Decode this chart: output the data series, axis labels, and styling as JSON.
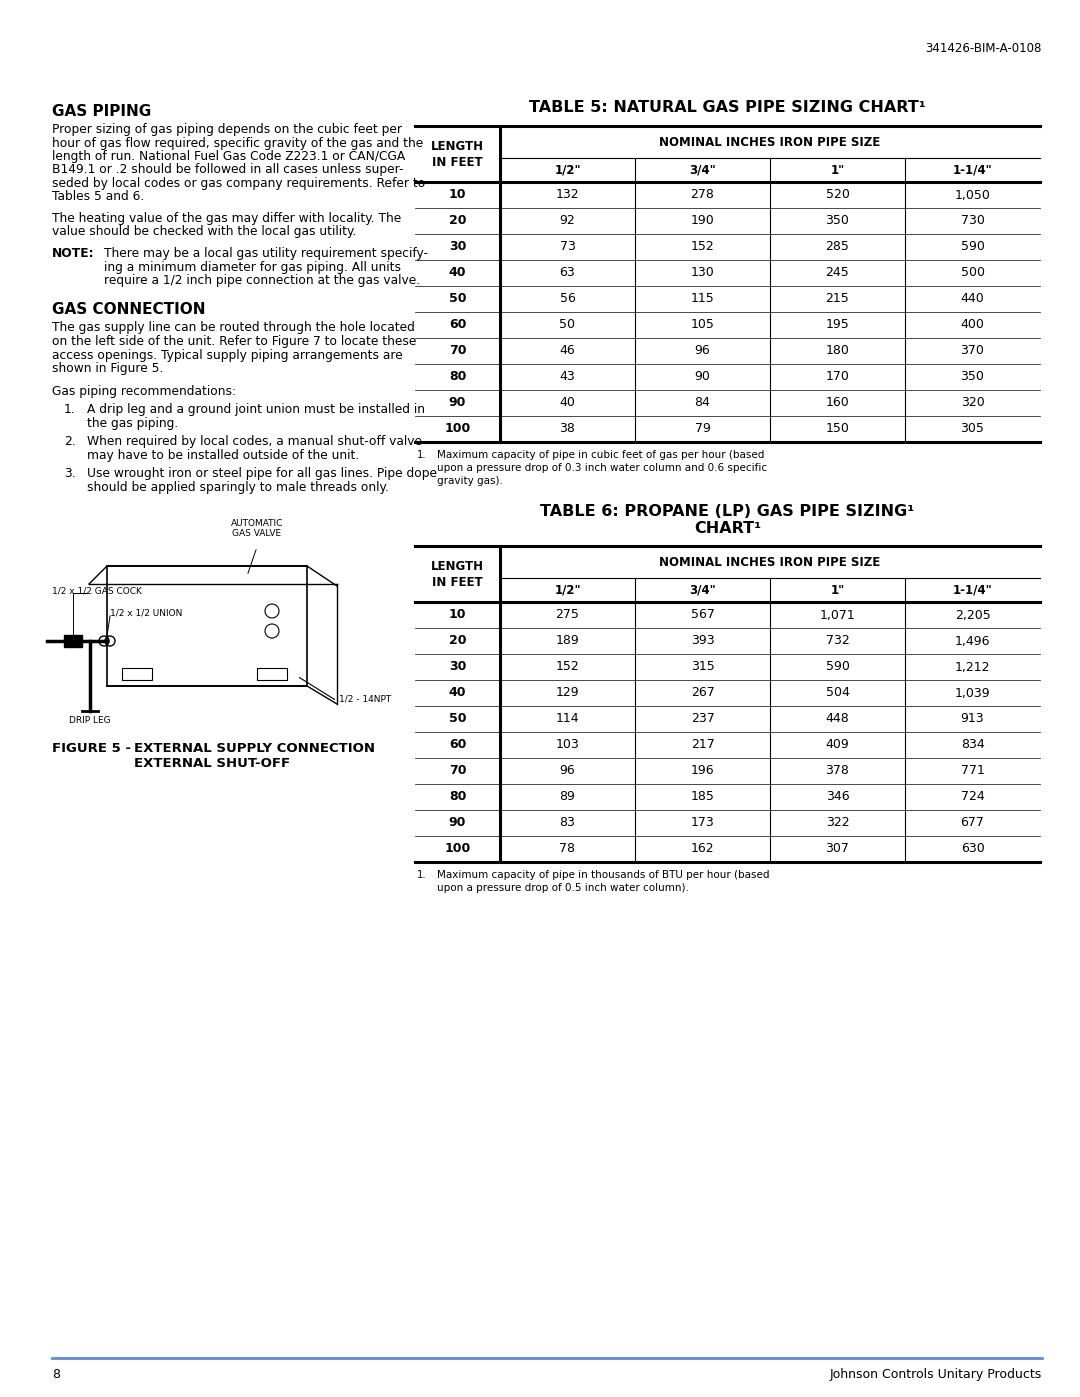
{
  "page_number": "8",
  "doc_number": "341426-BIM-A-0108",
  "footer_text": "Johnson Controls Unitary Products",
  "gas_piping_title": "GAS PIPING",
  "gas_piping_lines": [
    "Proper sizing of gas piping depends on the cubic feet per",
    "hour of gas flow required, specific gravity of the gas and the",
    "length of run. National Fuel Gas Code Z223.1 or CAN/CGA",
    "B149.1 or .2 should be followed in all cases unless super-",
    "seded by local codes or gas company requirements. Refer to",
    "Tables 5 and 6."
  ],
  "gas_piping_para2_lines": [
    "The heating value of the gas may differ with locality. The",
    "value should be checked with the local gas utility."
  ],
  "note_label": "NOTE:",
  "note_text_lines": [
    "There may be a local gas utility requirement specify-",
    "ing a minimum diameter for gas piping. All units",
    "require a 1/2 inch pipe connection at the gas valve."
  ],
  "gas_connection_title": "GAS CONNECTION",
  "gas_connection_lines": [
    "The gas supply line can be routed through the hole located",
    "on the left side of the unit. Refer to Figure 7 to locate these",
    "access openings. Typical supply piping arrangements are",
    "shown in Figure 5."
  ],
  "gas_piping_recs_label": "Gas piping recommendations:",
  "gas_piping_recs": [
    [
      "A drip leg and a ground joint union must be installed in",
      "the gas piping."
    ],
    [
      "When required by local codes, a manual shut-off valve",
      "may have to be installed outside of the unit."
    ],
    [
      "Use wrought iron or steel pipe for all gas lines. Pipe dope",
      "should be applied sparingly to male threads only."
    ]
  ],
  "figure_label_auto_gas": "AUTOMATIC\nGAS VALVE",
  "figure_label_union": "1/2 x 1/2 UNION",
  "figure_label_gas_cock": "1/2 x 1/2 GAS COCK",
  "figure_label_npt": "1/2 - 14NPT",
  "figure_label_drip": "DRIP LEG",
  "figure_caption_num": "FIGURE 5 -",
  "figure_caption_line1": "EXTERNAL SUPPLY CONNECTION",
  "figure_caption_line2": "EXTERNAL SHUT-OFF",
  "table5_title": "TABLE 5: NATURAL GAS PIPE SIZING CHART",
  "table5_sup": "1",
  "table5_col0_header": "LENGTH\nIN FEET",
  "table5_header2": "NOMINAL INCHES IRON PIPE SIZE",
  "table5_subheaders": [
    "1/2\"",
    "3/4\"",
    "1\"",
    "1-1/4\""
  ],
  "table5_rows": [
    [
      "10",
      "132",
      "278",
      "520",
      "1,050"
    ],
    [
      "20",
      "92",
      "190",
      "350",
      "730"
    ],
    [
      "30",
      "73",
      "152",
      "285",
      "590"
    ],
    [
      "40",
      "63",
      "130",
      "245",
      "500"
    ],
    [
      "50",
      "56",
      "115",
      "215",
      "440"
    ],
    [
      "60",
      "50",
      "105",
      "195",
      "400"
    ],
    [
      "70",
      "46",
      "96",
      "180",
      "370"
    ],
    [
      "80",
      "43",
      "90",
      "170",
      "350"
    ],
    [
      "90",
      "40",
      "84",
      "160",
      "320"
    ],
    [
      "100",
      "38",
      "79",
      "150",
      "305"
    ]
  ],
  "table5_fn_sup": "1.",
  "table5_fn": "Maximum capacity of pipe in cubic feet of gas per hour (based\nupon a pressure drop of 0.3 inch water column and 0.6 specific\ngravity gas).",
  "table6_title_line1": "TABLE 6: PROPANE (LP) GAS PIPE SIZING",
  "table6_title_line2": "CHART",
  "table6_sup": "1",
  "table6_col0_header": "LENGTH\nIN FEET",
  "table6_header2": "NOMINAL INCHES IRON PIPE SIZE",
  "table6_subheaders": [
    "1/2\"",
    "3/4\"",
    "1\"",
    "1-1/4\""
  ],
  "table6_rows": [
    [
      "10",
      "275",
      "567",
      "1,071",
      "2,205"
    ],
    [
      "20",
      "189",
      "393",
      "732",
      "1,496"
    ],
    [
      "30",
      "152",
      "315",
      "590",
      "1,212"
    ],
    [
      "40",
      "129",
      "267",
      "504",
      "1,039"
    ],
    [
      "50",
      "114",
      "237",
      "448",
      "913"
    ],
    [
      "60",
      "103",
      "217",
      "409",
      "834"
    ],
    [
      "70",
      "96",
      "196",
      "378",
      "771"
    ],
    [
      "80",
      "89",
      "185",
      "346",
      "724"
    ],
    [
      "90",
      "83",
      "173",
      "322",
      "677"
    ],
    [
      "100",
      "78",
      "162",
      "307",
      "630"
    ]
  ],
  "table6_fn_sup": "1.",
  "table6_fn": "Maximum capacity of pipe in thousands of BTU per hour (based\nupon a pressure drop of 0.5 inch water column)."
}
